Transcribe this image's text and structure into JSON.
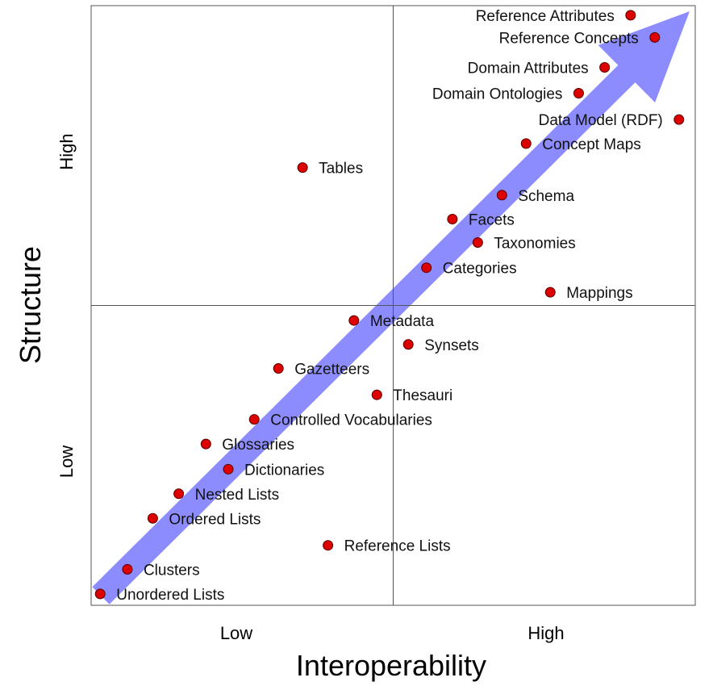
{
  "chart_data": {
    "type": "scatter",
    "title": "",
    "xlabel": "Interoperability",
    "ylabel": "Structure",
    "x_ticks": [
      "Low",
      "High"
    ],
    "y_ticks": [
      "Low",
      "High"
    ],
    "xlim": [
      0,
      100
    ],
    "ylim": [
      0,
      100
    ],
    "grid": "quadrant dividers at midpoint",
    "marker_color": "#dd0000",
    "arrow_color": "#8080ff",
    "points": [
      {
        "label": "Reference Attributes",
        "x": 89.3,
        "y": 98.4,
        "label_side": "left"
      },
      {
        "label": "Reference Concepts",
        "x": 93.3,
        "y": 94.7,
        "label_side": "left"
      },
      {
        "label": "Domain Attributes",
        "x": 85.0,
        "y": 89.7,
        "label_side": "left"
      },
      {
        "label": "Domain Ontologies",
        "x": 80.7,
        "y": 85.4,
        "label_side": "left"
      },
      {
        "label": "Data Model (RDF)",
        "x": 97.3,
        "y": 81.0,
        "label_side": "left"
      },
      {
        "label": "Concept Maps",
        "x": 72.0,
        "y": 77.0,
        "label_side": "right"
      },
      {
        "label": "Tables",
        "x": 35.0,
        "y": 73.0,
        "label_side": "right"
      },
      {
        "label": "Schema",
        "x": 68.0,
        "y": 68.4,
        "label_side": "right"
      },
      {
        "label": "Facets",
        "x": 59.8,
        "y": 64.4,
        "label_side": "right"
      },
      {
        "label": "Taxonomies",
        "x": 64.0,
        "y": 60.5,
        "label_side": "right"
      },
      {
        "label": "Categories",
        "x": 55.5,
        "y": 56.3,
        "label_side": "right"
      },
      {
        "label": "Mappings",
        "x": 76.0,
        "y": 52.2,
        "label_side": "right"
      },
      {
        "label": "Metadata",
        "x": 43.5,
        "y": 47.5,
        "label_side": "right"
      },
      {
        "label": "Synsets",
        "x": 52.5,
        "y": 43.5,
        "label_side": "right"
      },
      {
        "label": "Gazetteers",
        "x": 31.0,
        "y": 39.5,
        "label_side": "right"
      },
      {
        "label": "Thesauri",
        "x": 47.3,
        "y": 35.1,
        "label_side": "right"
      },
      {
        "label": "Controlled Vocabularies",
        "x": 27.0,
        "y": 31.0,
        "label_side": "right"
      },
      {
        "label": "Glossaries",
        "x": 19.0,
        "y": 26.9,
        "label_side": "right"
      },
      {
        "label": "Dictionaries",
        "x": 22.7,
        "y": 22.7,
        "label_side": "right"
      },
      {
        "label": "Nested Lists",
        "x": 14.5,
        "y": 18.6,
        "label_side": "right"
      },
      {
        "label": "Ordered Lists",
        "x": 10.2,
        "y": 14.5,
        "label_side": "right"
      },
      {
        "label": "Reference Lists",
        "x": 39.2,
        "y": 10.0,
        "label_side": "right"
      },
      {
        "label": "Clusters",
        "x": 6.0,
        "y": 6.0,
        "label_side": "right"
      },
      {
        "label": "Unordered Lists",
        "x": 1.5,
        "y": 1.9,
        "label_side": "right"
      }
    ]
  }
}
